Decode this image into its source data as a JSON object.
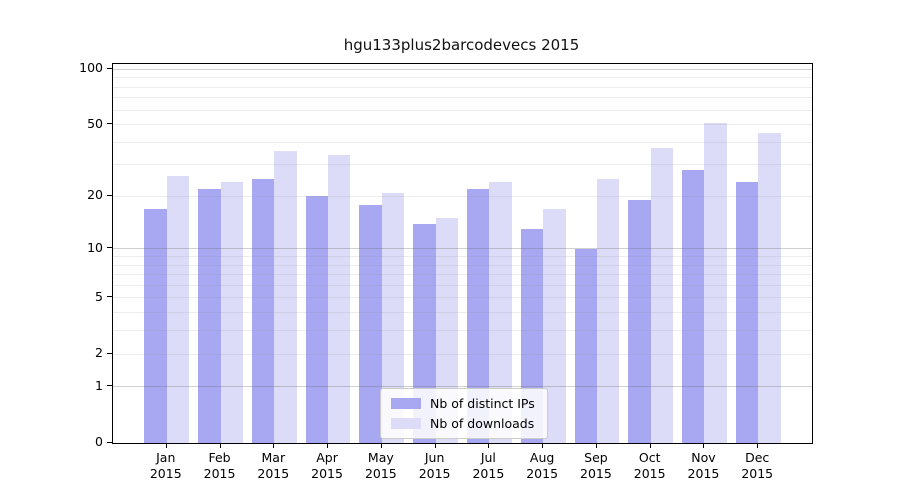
{
  "title": "hgu133plus2barcodevecs 2015",
  "colors": {
    "distinct_ips": "#a7a7f2",
    "downloads": "#dcdcf8",
    "axis": "#000000",
    "legend_border": "#cccccc"
  },
  "legend": {
    "items": [
      {
        "label": "Nb of distinct IPs"
      },
      {
        "label": "Nb of downloads"
      }
    ]
  },
  "chart_data": {
    "type": "bar",
    "title": "hgu133plus2barcodevecs 2015",
    "xlabel": "",
    "ylabel": "",
    "yscale": "log10(1+x)",
    "ylim": [
      0,
      108
    ],
    "grid": true,
    "legend_position": "lower-center",
    "y_ticks": [
      0,
      1,
      2,
      5,
      10,
      20,
      50,
      100
    ],
    "categories": [
      "Jan 2015",
      "Feb 2015",
      "Mar 2015",
      "Apr 2015",
      "May 2015",
      "Jun 2015",
      "Jul 2015",
      "Aug 2015",
      "Sep 2015",
      "Oct 2015",
      "Nov 2015",
      "Dec 2015"
    ],
    "series": [
      {
        "name": "Nb of distinct IPs",
        "color": "#a7a7f2",
        "values": [
          17,
          22,
          25,
          20,
          18,
          14,
          22,
          13,
          10,
          19,
          28,
          24
        ]
      },
      {
        "name": "Nb of downloads",
        "color": "#dcdcf8",
        "values": [
          26,
          24,
          36,
          34,
          21,
          15,
          24,
          17,
          25,
          37,
          51,
          45
        ]
      }
    ]
  }
}
